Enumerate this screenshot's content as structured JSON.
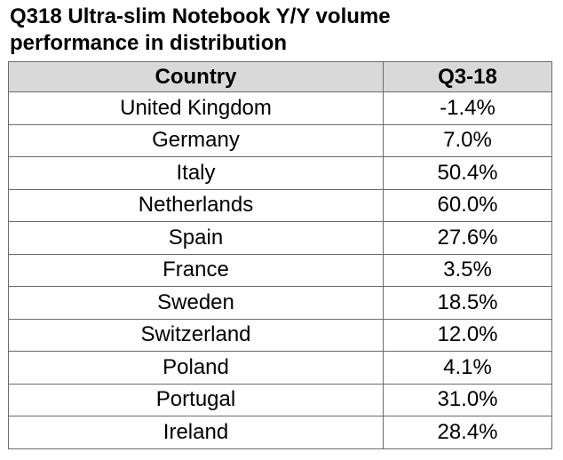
{
  "title_lines": [
    "Q318 Ultra-slim Notebook Y/Y volume",
    "performance in distribution"
  ],
  "chart_data": {
    "type": "table",
    "title": "Q318 Ultra-slim Notebook Y/Y volume performance in distribution",
    "columns": [
      "Country",
      "Q3-18"
    ],
    "rows": [
      {
        "country": "United Kingdom",
        "value": "-1.4%"
      },
      {
        "country": "Germany",
        "value": "7.0%"
      },
      {
        "country": "Italy",
        "value": "50.4%"
      },
      {
        "country": "Netherlands",
        "value": "60.0%"
      },
      {
        "country": "Spain",
        "value": "27.6%"
      },
      {
        "country": "France",
        "value": "3.5%"
      },
      {
        "country": "Sweden",
        "value": "18.5%"
      },
      {
        "country": "Switzerland",
        "value": "12.0%"
      },
      {
        "country": "Poland",
        "value": "4.1%"
      },
      {
        "country": "Portugal",
        "value": "31.0%"
      },
      {
        "country": "Ireland",
        "value": "28.4%"
      }
    ],
    "header_background": "#d9d9d9",
    "border_color": "#6b6b6b"
  }
}
